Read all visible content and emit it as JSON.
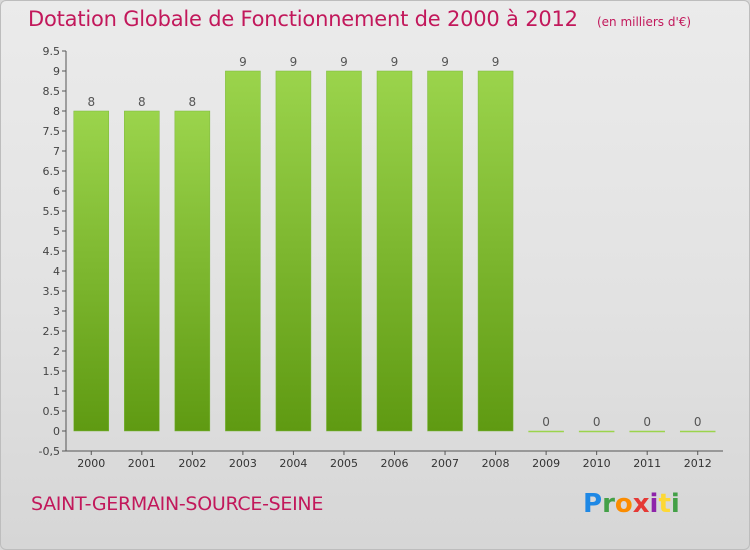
{
  "title": "Dotation Globale de Fonctionnement de 2000 à 2012",
  "subtitle": "(en milliers d'€)",
  "commune": "SAINT-GERMAIN-SOURCE-SEINE",
  "logo": {
    "text": "Proxiti"
  },
  "colors": {
    "title": "#c2185b",
    "bar_light": "#9bd44c",
    "bar_dark": "#5f9a12",
    "axis": "#555555"
  },
  "chart_data": {
    "type": "bar",
    "categories": [
      "2000",
      "2001",
      "2002",
      "2003",
      "2004",
      "2005",
      "2006",
      "2007",
      "2008",
      "2009",
      "2010",
      "2011",
      "2012"
    ],
    "values": [
      8,
      8,
      8,
      9,
      9,
      9,
      9,
      9,
      9,
      0,
      0,
      0,
      0
    ],
    "value_labels": [
      "8",
      "8",
      "8",
      "9",
      "9",
      "9",
      "9",
      "9",
      "9",
      "0",
      "0",
      "0",
      "0"
    ],
    "ylim": [
      -0.5,
      9.5
    ],
    "yticks": [
      "-0,5",
      "0",
      "0.5",
      "1",
      "1.5",
      "2",
      "2.5",
      "3",
      "3.5",
      "4",
      "4.5",
      "5",
      "5.5",
      "6",
      "6.5",
      "7",
      "7.5",
      "8",
      "8.5",
      "9",
      "9.5"
    ],
    "ytick_values": [
      -0.5,
      0,
      0.5,
      1,
      1.5,
      2,
      2.5,
      3,
      3.5,
      4,
      4.5,
      5,
      5.5,
      6,
      6.5,
      7,
      7.5,
      8,
      8.5,
      9,
      9.5
    ],
    "grid": false,
    "legend": "none"
  }
}
